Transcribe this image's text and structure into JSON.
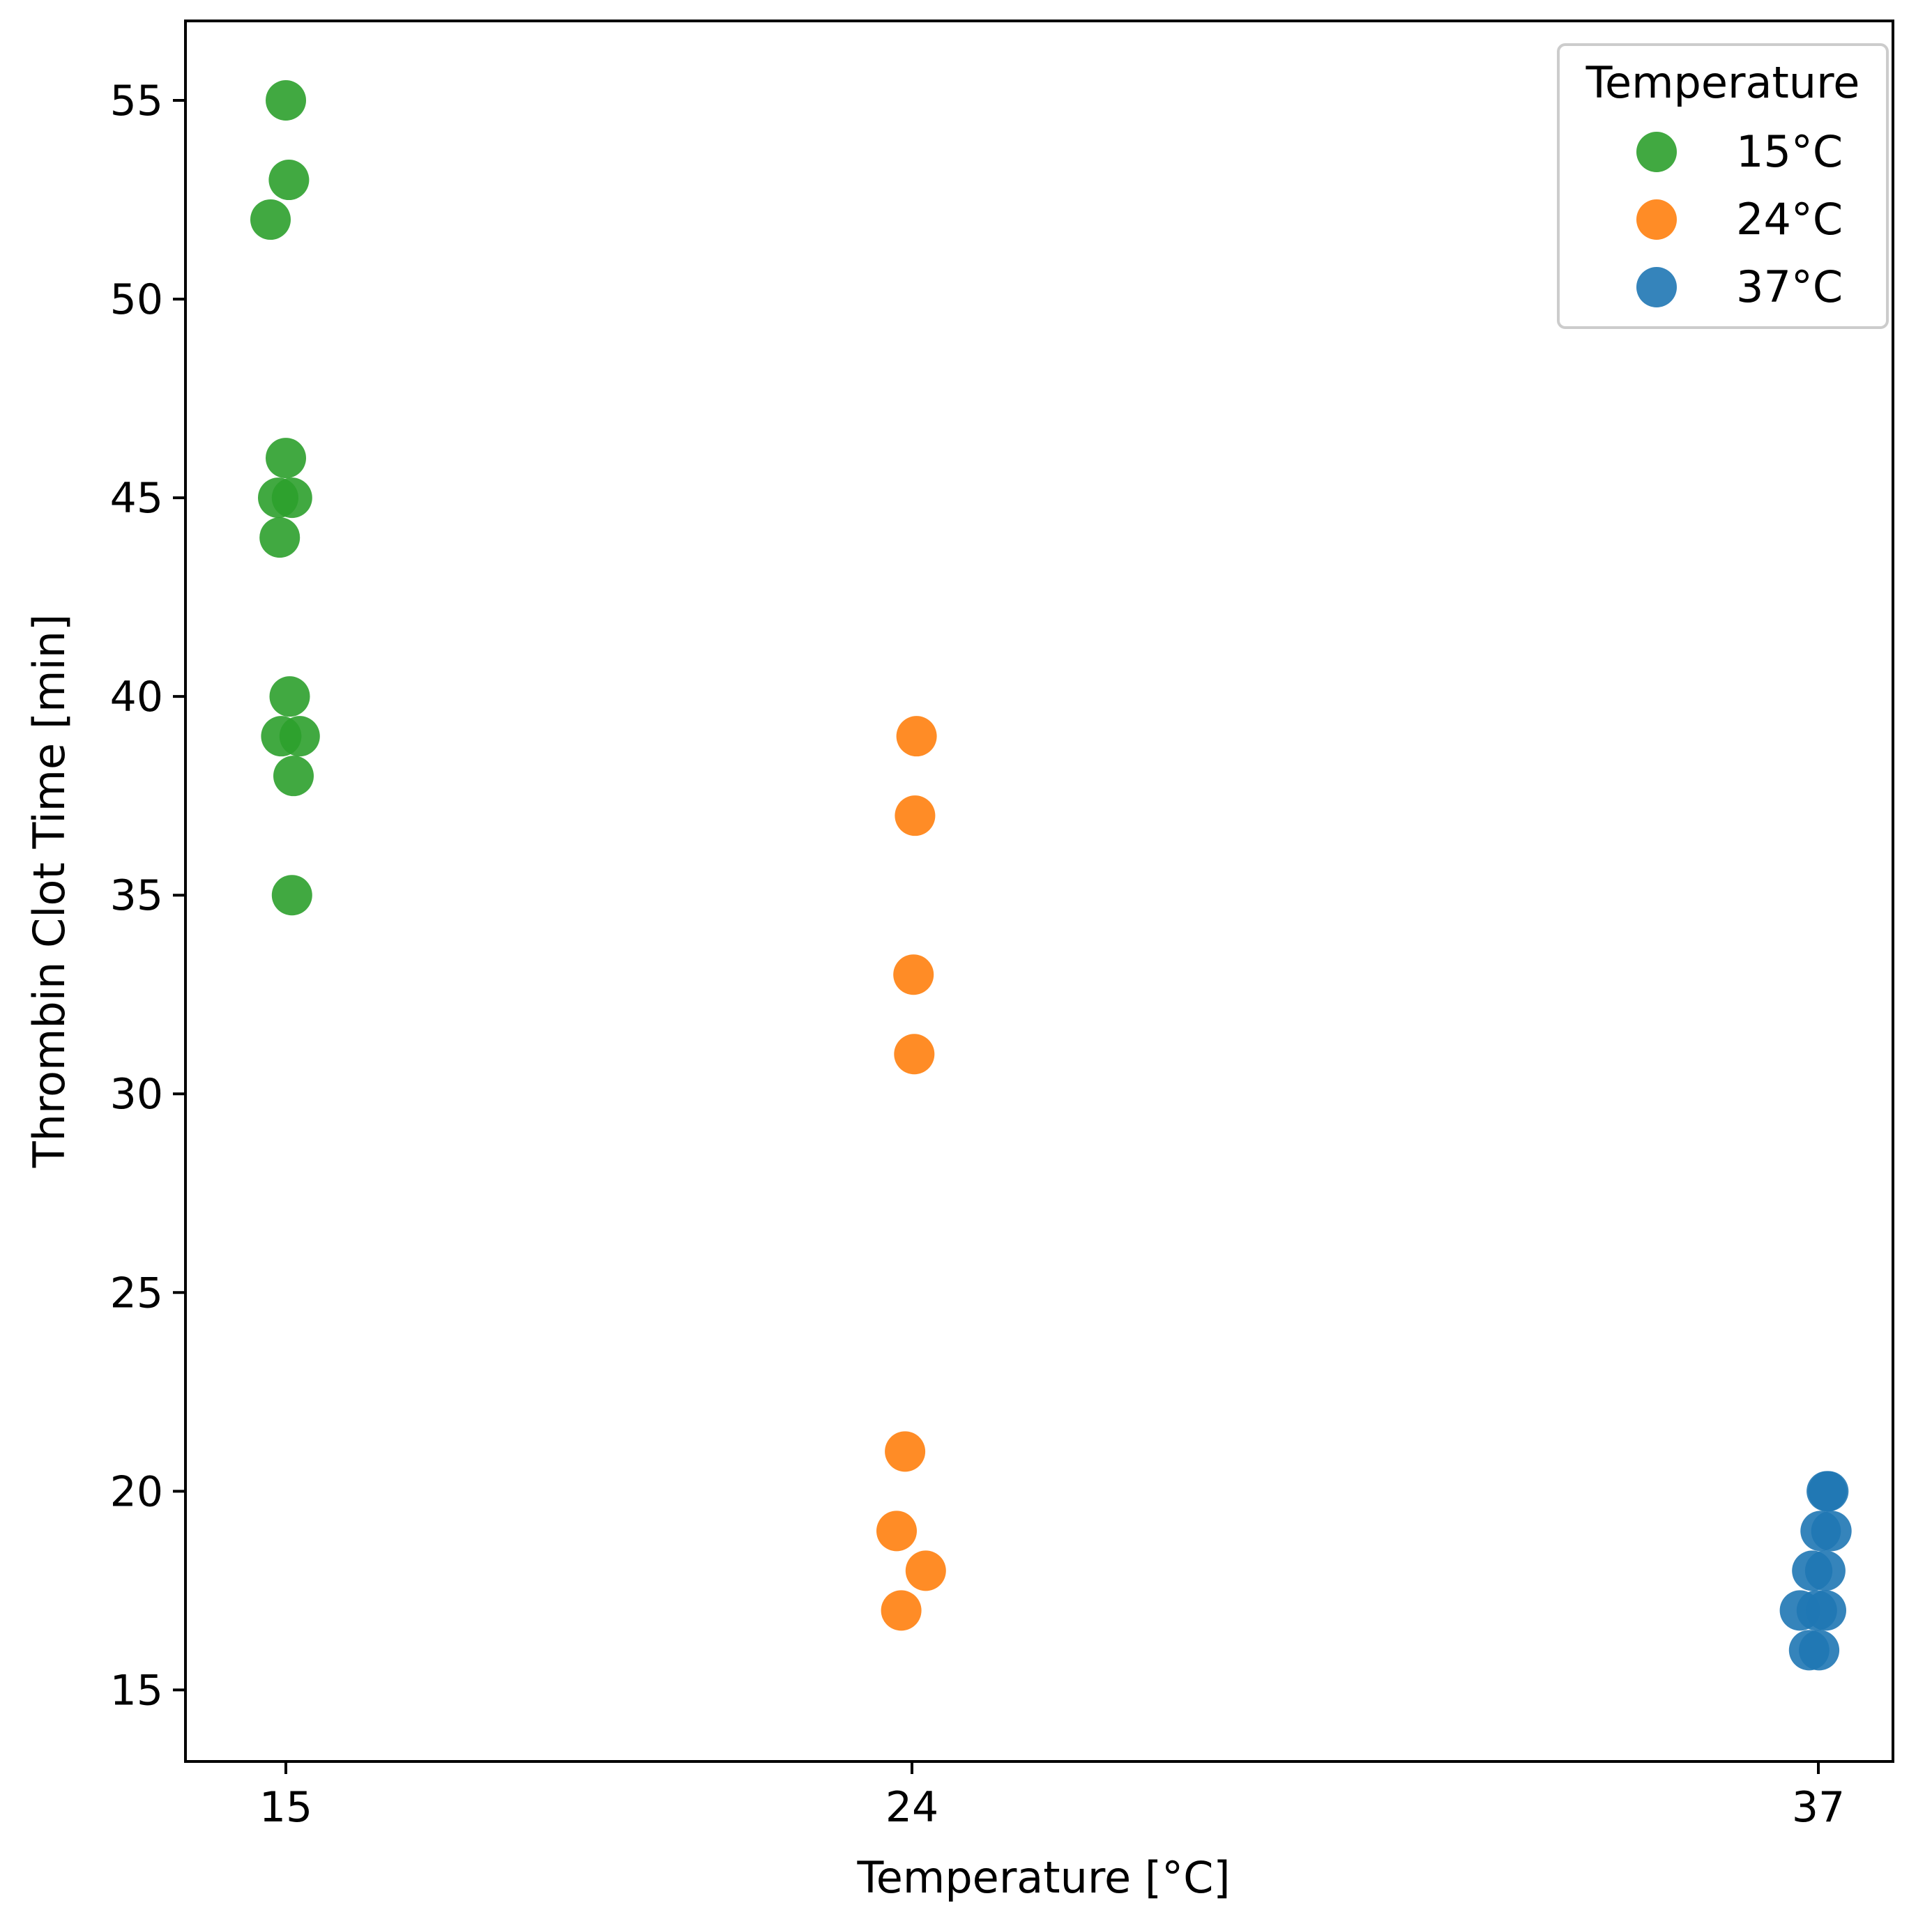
{
  "chart_data": {
    "type": "scatter",
    "title": "",
    "xlabel": "Temperature [°C]",
    "ylabel": "Thrombin Clot Time [min]",
    "x_categories": [
      "15",
      "24",
      "37"
    ],
    "yticks": [
      15,
      20,
      25,
      30,
      35,
      40,
      45,
      50,
      55
    ],
    "ylim": [
      13.2,
      57
    ],
    "grid": false,
    "legend": {
      "title": "Temperature",
      "placement": "top-right"
    },
    "series": [
      {
        "name": "15°C",
        "color": "#2ca02c",
        "category": "15",
        "points": [
          {
            "jitter": -0.2,
            "y": 52
          },
          {
            "jitter": 0.0,
            "y": 55
          },
          {
            "jitter": 0.04,
            "y": 53
          },
          {
            "jitter": 0.0,
            "y": 46
          },
          {
            "jitter": -0.1,
            "y": 45
          },
          {
            "jitter": 0.08,
            "y": 45
          },
          {
            "jitter": -0.08,
            "y": 44
          },
          {
            "jitter": 0.05,
            "y": 40
          },
          {
            "jitter": -0.06,
            "y": 39
          },
          {
            "jitter": 0.18,
            "y": 39
          },
          {
            "jitter": 0.1,
            "y": 38
          },
          {
            "jitter": 0.08,
            "y": 35
          }
        ]
      },
      {
        "name": "24°C",
        "color": "#ff7f0e",
        "category": "24",
        "points": [
          {
            "jitter": 0.06,
            "y": 39
          },
          {
            "jitter": 0.04,
            "y": 37
          },
          {
            "jitter": 0.02,
            "y": 33
          },
          {
            "jitter": 0.03,
            "y": 31
          },
          {
            "jitter": -0.09,
            "y": 21
          },
          {
            "jitter": -0.2,
            "y": 19
          },
          {
            "jitter": 0.18,
            "y": 18
          },
          {
            "jitter": -0.14,
            "y": 17
          }
        ]
      },
      {
        "name": "37°C",
        "color": "#1f77b4",
        "category": "37",
        "points": [
          {
            "jitter": 0.11,
            "y": 20
          },
          {
            "jitter": 0.13,
            "y": 20
          },
          {
            "jitter": 0.03,
            "y": 19
          },
          {
            "jitter": 0.17,
            "y": 19
          },
          {
            "jitter": -0.08,
            "y": 18
          },
          {
            "jitter": 0.09,
            "y": 18
          },
          {
            "jitter": -0.24,
            "y": 17
          },
          {
            "jitter": -0.02,
            "y": 17
          },
          {
            "jitter": 0.1,
            "y": 17
          },
          {
            "jitter": -0.12,
            "y": 16
          },
          {
            "jitter": 0.01,
            "y": 16
          }
        ]
      }
    ]
  }
}
